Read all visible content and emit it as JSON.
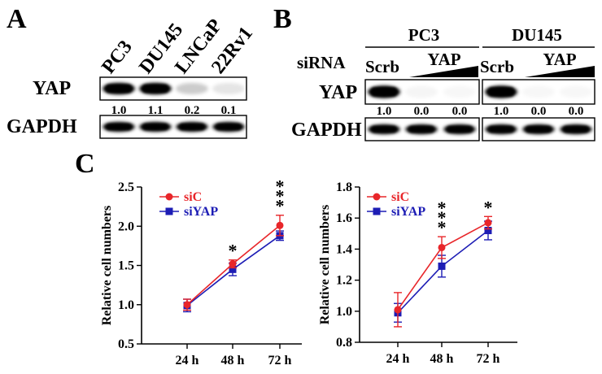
{
  "panels": {
    "a": {
      "letter": "A",
      "lanes": [
        "PC3",
        "DU145",
        "LNCaP",
        "22Rv1"
      ],
      "yap_label": "YAP",
      "gapdh_label": "GAPDH",
      "quant": [
        "1.0",
        "1.1",
        "0.2",
        "0.1"
      ],
      "yap_intensity": [
        1.0,
        1.0,
        0.2,
        0.1
      ]
    },
    "b": {
      "letter": "B",
      "cell_lines": [
        "PC3",
        "DU145"
      ],
      "sirna_label": "siRNA",
      "scrb_label": "Scrb",
      "yap_treat_label": "YAP",
      "yap_label": "YAP",
      "gapdh_label": "GAPDH",
      "quant": [
        [
          "1.0",
          "0.0",
          "0.0"
        ],
        [
          "1.0",
          "0.0",
          "0.0"
        ]
      ],
      "yap_intensity": [
        [
          1.0,
          0.04,
          0.02
        ],
        [
          1.0,
          0.03,
          0.02
        ]
      ]
    },
    "c": {
      "letter": "C"
    }
  },
  "chart_data": [
    {
      "type": "line",
      "categories": [
        "24 h",
        "48 h",
        "72 h"
      ],
      "ylabel": "Relative cell numbers",
      "ylim": [
        0.5,
        2.5
      ],
      "yticks": [
        "0.5",
        "1.0",
        "1.5",
        "2.0",
        "2.5"
      ],
      "legend_position": "top-left",
      "series": [
        {
          "name": "siC",
          "color": "#e8262a",
          "marker": "circle",
          "values": [
            1.0,
            1.52,
            2.01
          ],
          "errors": [
            0.07,
            0.05,
            0.13
          ]
        },
        {
          "name": "siYAP",
          "color": "#1d1db5",
          "marker": "square",
          "values": [
            0.99,
            1.45,
            1.88
          ],
          "errors": [
            0.08,
            0.08,
            0.06
          ]
        }
      ],
      "significance": [
        "",
        "*",
        "***"
      ]
    },
    {
      "type": "line",
      "categories": [
        "24 h",
        "48 h",
        "72 h"
      ],
      "ylabel": "Relative cell numbers",
      "ylim": [
        0.8,
        1.8
      ],
      "yticks": [
        "0.8",
        "1.0",
        "1.2",
        "1.4",
        "1.6",
        "1.8"
      ],
      "legend_position": "top-left",
      "series": [
        {
          "name": "siC",
          "color": "#e8262a",
          "marker": "circle",
          "values": [
            1.01,
            1.41,
            1.57
          ],
          "errors": [
            0.11,
            0.07,
            0.04
          ]
        },
        {
          "name": "siYAP",
          "color": "#1d1db5",
          "marker": "square",
          "values": [
            0.99,
            1.29,
            1.52
          ],
          "errors": [
            0.06,
            0.07,
            0.06
          ]
        }
      ],
      "significance": [
        "",
        "***",
        "*"
      ]
    }
  ]
}
